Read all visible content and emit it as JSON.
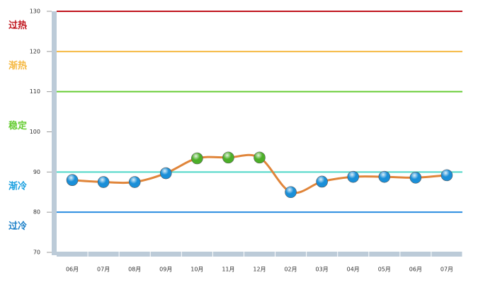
{
  "chart_data": {
    "type": "line",
    "categories": [
      "06月",
      "07月",
      "08月",
      "09月",
      "10月",
      "11月",
      "12月",
      "02月",
      "03月",
      "04月",
      "05月",
      "06月",
      "07月"
    ],
    "values": [
      88,
      87.5,
      87.5,
      89.7,
      93.4,
      93.6,
      93.6,
      85,
      87.6,
      88.8,
      88.8,
      88.6,
      89.2
    ],
    "color": "#e0853a",
    "point_colors": [
      "#1a8fd8",
      "#1a8fd8",
      "#1a8fd8",
      "#1a8fd8",
      "#4caf28",
      "#4caf28",
      "#4caf28",
      "#1a8fd8",
      "#1a8fd8",
      "#1a8fd8",
      "#1a8fd8",
      "#1a8fd8",
      "#1a8fd8"
    ],
    "ylim": [
      70,
      130
    ],
    "yticks": [
      70,
      80,
      90,
      100,
      110,
      120,
      130
    ],
    "thresholds": [
      {
        "value": 130,
        "label": "过热",
        "color": "#c0141c",
        "label_color": "#c0141c"
      },
      {
        "value": 120,
        "label": "渐热",
        "color": "#f5b841",
        "label_color": "#f5b841"
      },
      {
        "value": 110,
        "label": "稳定",
        "color": "#66cc33",
        "label_color": "#66cc33"
      },
      {
        "value": 90,
        "label": "渐冷",
        "color": "#4dd6c8",
        "label_color": "#1aa0e0"
      },
      {
        "value": 80,
        "label": "过冷",
        "color": "#2a8de0",
        "label_color": "#1a7fc8"
      }
    ]
  }
}
